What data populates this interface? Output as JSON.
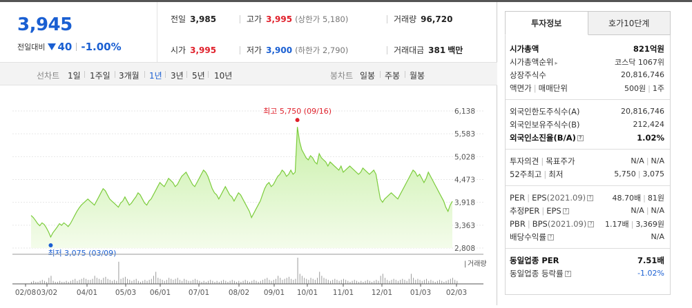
{
  "quote": {
    "price": "3,945",
    "change_label": "전일대비",
    "change_amount": "40",
    "change_pct": "-1.00%",
    "stats": {
      "prev_close": {
        "label": "전일",
        "value": "3,985"
      },
      "high": {
        "label": "고가",
        "value": "3,995",
        "sub": "(상한가 5,180)"
      },
      "volume": {
        "label": "거래량",
        "value": "96,720"
      },
      "open": {
        "label": "시가",
        "value": "3,995"
      },
      "low": {
        "label": "저가",
        "value": "3,900",
        "sub": "(하한가 2,790)"
      },
      "amount": {
        "label": "거래대금",
        "value": "381",
        "unit": "백만"
      }
    }
  },
  "period_bar": {
    "line_chart_label": "선차트",
    "periods": [
      "1일",
      "1주일",
      "3개월",
      "1년",
      "3년",
      "5년",
      "10년"
    ],
    "active_period": "1년",
    "candle_label": "봉차트",
    "candles": [
      "일봉",
      "주봉",
      "월봉"
    ]
  },
  "chart_data": {
    "type": "area",
    "y_ticks": [
      "6,138",
      "5,583",
      "5,028",
      "4,473",
      "3,918",
      "3,363",
      "2,808"
    ],
    "ylim": [
      2808,
      6138
    ],
    "x_ticks": [
      "02/08",
      "03/02",
      "04/01",
      "05/03",
      "06/01",
      "07/01",
      "08/02",
      "09/01",
      "10/01",
      "11/01",
      "12/01",
      "01/03",
      "02/03"
    ],
    "high_annotation": "최고 5,750 (09/16)",
    "low_annotation": "최저 3,075 (03/09)",
    "volume_label": "거래량",
    "prices": [
      3600,
      3550,
      3480,
      3400,
      3350,
      3420,
      3380,
      3300,
      3200,
      3075,
      3180,
      3250,
      3320,
      3400,
      3360,
      3420,
      3380,
      3330,
      3400,
      3500,
      3600,
      3700,
      3780,
      3850,
      3900,
      3950,
      4000,
      3950,
      3900,
      3850,
      3950,
      4050,
      4150,
      4250,
      4200,
      4100,
      4000,
      3950,
      3900,
      3850,
      3800,
      3900,
      3950,
      4050,
      3950,
      3850,
      3900,
      3980,
      4050,
      4150,
      4100,
      4000,
      3900,
      3850,
      3950,
      4000,
      4100,
      4200,
      4300,
      4400,
      4350,
      4300,
      4400,
      4500,
      4450,
      4400,
      4300,
      4350,
      4450,
      4550,
      4600,
      4650,
      4550,
      4450,
      4350,
      4300,
      4400,
      4500,
      4600,
      4700,
      4650,
      4550,
      4400,
      4250,
      4150,
      4100,
      4000,
      4100,
      4200,
      4300,
      4200,
      4100,
      4050,
      3950,
      4050,
      4150,
      4100,
      4000,
      3900,
      3800,
      3700,
      3550,
      3650,
      3750,
      3850,
      3950,
      4100,
      4250,
      4350,
      4400,
      4300,
      4350,
      4450,
      4550,
      4600,
      4700,
      4650,
      4550,
      4600,
      4700,
      4600,
      4650,
      5750,
      5400,
      5200,
      5100,
      5000,
      4950,
      5050,
      5000,
      4900,
      4850,
      5100,
      5000,
      4950,
      4900,
      4800,
      4900,
      4850,
      4800,
      4750,
      4700,
      4800,
      4650,
      4700,
      4750,
      4800,
      4750,
      4700,
      4650,
      4600,
      4650,
      4750,
      4700,
      4650,
      4600,
      4650,
      4700,
      4600,
      4300,
      4000,
      3920,
      4000,
      4050,
      4100,
      4150,
      4100,
      4050,
      4000,
      4100,
      4200,
      4300,
      4400,
      4500,
      4600,
      4700,
      4650,
      4550,
      4600,
      4500,
      4400,
      4500,
      4650,
      4550,
      4450,
      4350,
      4250,
      4150,
      4050,
      3950,
      3800,
      3700,
      3850,
      3945
    ],
    "volumes": [
      2,
      3,
      2,
      2,
      3,
      4,
      3,
      2,
      6,
      8,
      3,
      2,
      2,
      3,
      2,
      2,
      3,
      2,
      3,
      4,
      5,
      3,
      4,
      5,
      6,
      5,
      4,
      4,
      5,
      8,
      6,
      5,
      4,
      6,
      7,
      5,
      4,
      3,
      4,
      3,
      22,
      5,
      6,
      7,
      5,
      4,
      3,
      4,
      5,
      3,
      2,
      3,
      4,
      3,
      4,
      5,
      8,
      12,
      6,
      5,
      4,
      3,
      4,
      6,
      5,
      4,
      5,
      6,
      4,
      3,
      5,
      4,
      3,
      3,
      4,
      5,
      4,
      3,
      2,
      3,
      2,
      3,
      4,
      3,
      2,
      3,
      2,
      3,
      4,
      3,
      2,
      3,
      4,
      3,
      2,
      3,
      2,
      3,
      4,
      3,
      2,
      3,
      4,
      3,
      2,
      3,
      4,
      5,
      6,
      4,
      3,
      4,
      5,
      8,
      6,
      4,
      5,
      6,
      7,
      5,
      4,
      5,
      26,
      10,
      8,
      6,
      5,
      4,
      6,
      5,
      4,
      6,
      12,
      8,
      6,
      5,
      4,
      3,
      4,
      5,
      4,
      3,
      4,
      5,
      4,
      3,
      2,
      3,
      4,
      3,
      2,
      3,
      2,
      3,
      4,
      3,
      2,
      3,
      4,
      3,
      8,
      10,
      6,
      4,
      3,
      4,
      5,
      4,
      3,
      4,
      5,
      4,
      3,
      5,
      10,
      6,
      4,
      5,
      4,
      3,
      4,
      5,
      3,
      4,
      3,
      2,
      3,
      4,
      3,
      2,
      3,
      4,
      5,
      6,
      4,
      3
    ]
  },
  "right_panel": {
    "tabs": [
      "투자정보",
      "호가10단계"
    ],
    "rows": {
      "market_cap": {
        "label": "시가총액",
        "value": "821억원"
      },
      "market_cap_rank": {
        "label": "시가총액순위",
        "value": "코스닥 1067위"
      },
      "shares": {
        "label": "상장주식수",
        "value": "20,816,746"
      },
      "par_label": "액면가",
      "trade_unit_label": "매매단위",
      "par_value": "500원",
      "trade_unit_value": "1주",
      "foreign_limit": {
        "label": "외국인한도주식수(A)",
        "value": "20,816,746"
      },
      "foreign_hold": {
        "label": "외국인보유주식수(B)",
        "value": "212,424"
      },
      "foreign_ratio": {
        "label": "외국인소진율(B/A)",
        "value": "1.02%"
      },
      "opinion_label": "투자의견",
      "target_label": "목표주가",
      "opinion_value": "N/A",
      "target_value": "N/A",
      "w52_high_label": "52주최고",
      "w52_low_label": "최저",
      "w52_high": "5,750",
      "w52_low": "3,075",
      "per_label": "PER",
      "eps_label": "EPS",
      "eps_year": "(2021.09)",
      "per_value": "48.70배",
      "eps_value": "81원",
      "est_per_label": "추정PER",
      "est_eps_label": "EPS",
      "est_per_value": "N/A",
      "est_eps_value": "N/A",
      "pbr_label": "PBR",
      "bps_label": "BPS",
      "bps_year": "(2021.09)",
      "pbr_value": "1.17배",
      "bps_value": "3,369원",
      "dividend": {
        "label": "배당수익률",
        "value": "N/A"
      },
      "sector_per": {
        "label": "동일업종 PER",
        "value": "7.51배"
      },
      "sector_change": {
        "label": "동일업종 등락률",
        "value": "-1.02%"
      }
    },
    "help_glyph": "?",
    "caret_glyph": "▸"
  }
}
